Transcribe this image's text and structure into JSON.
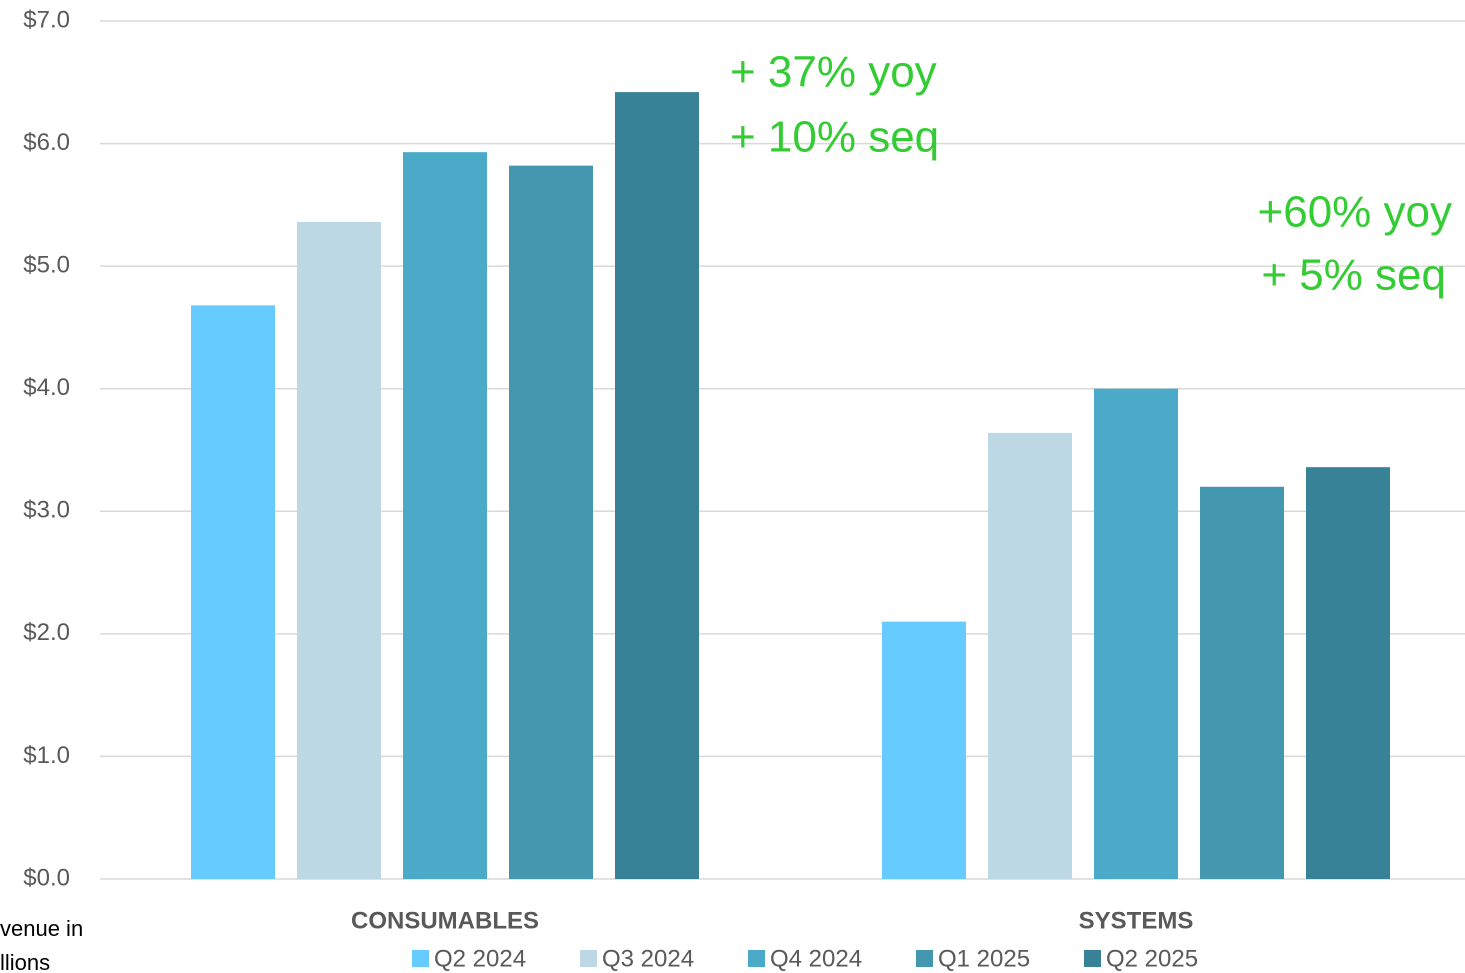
{
  "chart_data": {
    "type": "bar",
    "categories": [
      "CONSUMABLES",
      "SYSTEMS"
    ],
    "series": [
      {
        "name": "Q2 2024",
        "color": "#66ccff",
        "values": [
          4.68,
          2.1
        ]
      },
      {
        "name": "Q3 2024",
        "color": "#bcd8e4",
        "values": [
          5.36,
          3.64
        ]
      },
      {
        "name": "Q4 2024",
        "color": "#4aaac7",
        "values": [
          5.93,
          4.0
        ]
      },
      {
        "name": "Q1 2025",
        "color": "#4398b0",
        "values": [
          5.82,
          3.2
        ]
      },
      {
        "name": "Q2 2025",
        "color": "#378296",
        "values": [
          6.42,
          3.36
        ]
      }
    ],
    "ylim": [
      0,
      7
    ],
    "yticks": [
      {
        "value": 0,
        "label": "$0.0"
      },
      {
        "value": 1,
        "label": "$1.0"
      },
      {
        "value": 2,
        "label": "$2.0"
      },
      {
        "value": 3,
        "label": "$3.0"
      },
      {
        "value": 4,
        "label": "$4.0"
      },
      {
        "value": 5,
        "label": "$5.0"
      },
      {
        "value": 6,
        "label": "$6.0"
      },
      {
        "value": 7,
        "label": "$7.0"
      }
    ],
    "grid": true,
    "legend": "bottom",
    "annotations": [
      [
        "+ 37% yoy",
        "+ 10% seq"
      ],
      [
        "+60% yoy",
        "+ 5% seq"
      ]
    ],
    "axis_note": [
      "venue in",
      "llions"
    ]
  }
}
